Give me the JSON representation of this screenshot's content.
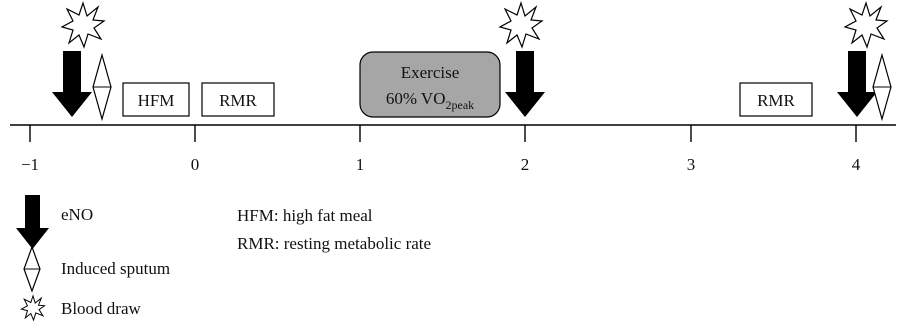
{
  "timeline": {
    "ticks": [
      {
        "label": "−1"
      },
      {
        "label": "0"
      },
      {
        "label": "1"
      },
      {
        "label": "2"
      },
      {
        "label": "3"
      },
      {
        "label": "4"
      }
    ]
  },
  "boxes": {
    "hfm": "HFM",
    "rmr_1": "RMR",
    "rmr_2": "RMR",
    "exercise_line1": "Exercise",
    "exercise_line2_main": "60% VO",
    "exercise_line2_sub": "2peak"
  },
  "legend": {
    "eno": "eNO",
    "sputum": "Induced sputum",
    "blood": "Blood draw"
  },
  "abbreviations": {
    "hfm": "HFM: high fat meal",
    "rmr": "RMR: resting metabolic rate"
  },
  "colors": {
    "arrow": "#000000",
    "exercise_fill": "#a6a6a6",
    "line": "#000000"
  }
}
